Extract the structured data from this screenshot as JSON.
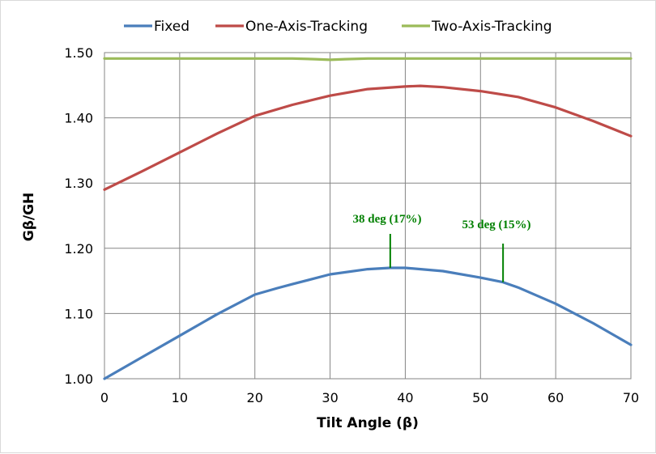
{
  "chart_data": {
    "type": "line",
    "title": "",
    "xlabel": "Tilt Angle (β)",
    "ylabel": "Gβ/GH",
    "xlim": [
      0,
      70
    ],
    "ylim": [
      1.0,
      1.5
    ],
    "xticks": [
      0,
      10,
      20,
      30,
      40,
      50,
      60,
      70
    ],
    "yticks": [
      1.0,
      1.1,
      1.2,
      1.3,
      1.4,
      1.5
    ],
    "ytick_labels": [
      "1.00",
      "1.10",
      "1.20",
      "1.30",
      "1.40",
      "1.50"
    ],
    "grid": true,
    "legend_position": "top",
    "series": [
      {
        "name": "Fixed",
        "color": "#4a7ebb",
        "x": [
          0,
          5,
          10,
          15,
          20,
          23,
          25,
          30,
          35,
          38,
          40,
          45,
          50,
          53,
          55,
          60,
          65,
          70
        ],
        "y": [
          1.0,
          1.033,
          1.066,
          1.099,
          1.129,
          1.139,
          1.145,
          1.16,
          1.168,
          1.17,
          1.17,
          1.165,
          1.155,
          1.148,
          1.14,
          1.115,
          1.085,
          1.052
        ]
      },
      {
        "name": "One-Axis-Tracking",
        "color": "#be4b48",
        "x": [
          0,
          5,
          10,
          15,
          20,
          25,
          30,
          35,
          40,
          42,
          45,
          50,
          55,
          60,
          65,
          70
        ],
        "y": [
          1.29,
          1.318,
          1.347,
          1.376,
          1.403,
          1.42,
          1.434,
          1.444,
          1.448,
          1.449,
          1.447,
          1.441,
          1.432,
          1.416,
          1.395,
          1.372
        ]
      },
      {
        "name": "Two-Axis-Tracking",
        "color": "#9bbb59",
        "x": [
          0,
          10,
          20,
          25,
          28,
          30,
          32,
          35,
          40,
          50,
          60,
          70
        ],
        "y": [
          1.491,
          1.491,
          1.491,
          1.491,
          1.49,
          1.489,
          1.49,
          1.491,
          1.491,
          1.491,
          1.491,
          1.491
        ]
      }
    ],
    "annotations": [
      {
        "text": "38 deg (17%)",
        "x": 38,
        "y": 1.17,
        "color": "#008000"
      },
      {
        "text": "53 deg (15%)",
        "x": 53,
        "y": 1.148,
        "color": "#008000"
      }
    ],
    "colors": {
      "grid": "#868686",
      "axis": "#868686",
      "annotation": "#008000"
    }
  }
}
